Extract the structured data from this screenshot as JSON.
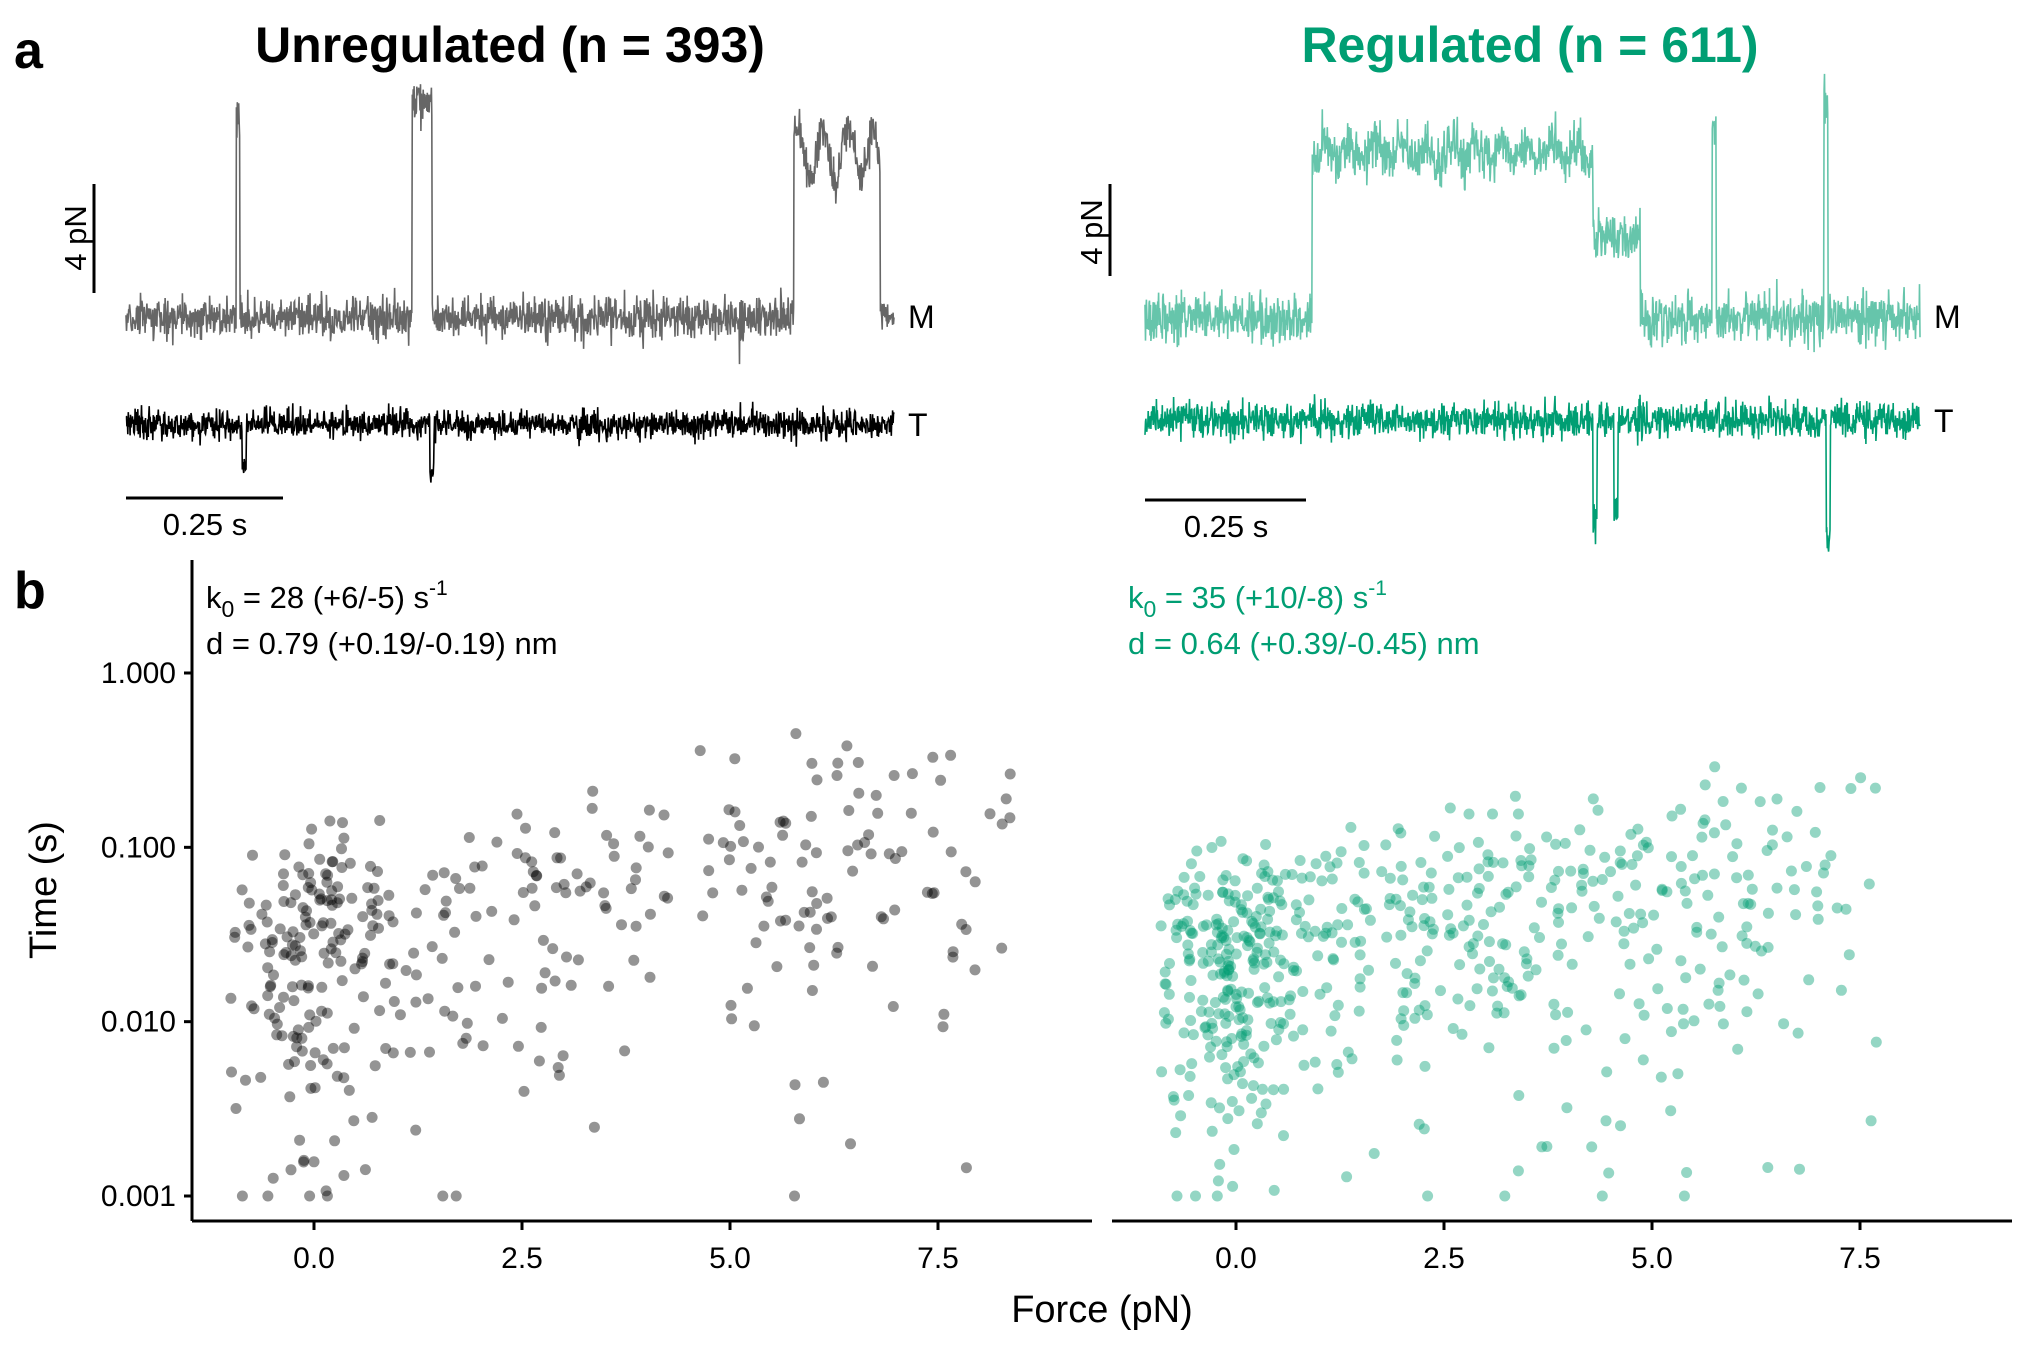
{
  "panel_labels": {
    "a": "a",
    "b": "b"
  },
  "colors": {
    "unregulated": "#000000",
    "unregulated_m": "#666666",
    "regulated": "#009E73",
    "regulated_m": "#66C5AB"
  },
  "panel_a": {
    "left": {
      "title": "Unregulated (n = 393)",
      "m_label": "M",
      "t_label": "T",
      "scalebar_force": "4 pN",
      "scalebar_time": "0.25 s"
    },
    "right": {
      "title": "Regulated (n = 611)",
      "m_label": "M",
      "t_label": "T",
      "scalebar_force": "4 pN",
      "scalebar_time": "0.25 s"
    }
  },
  "chart_data": {
    "type": "scatter",
    "xlabel": "Force (pN)",
    "ylabel": "Time (s)",
    "y_scale": "log",
    "ylim": [
      0.001,
      4
    ],
    "xlim": [
      -1.5,
      9.5
    ],
    "x_ticks": [
      "0.0",
      "2.5",
      "5.0",
      "7.5"
    ],
    "y_ticks": [
      "0.001",
      "0.010",
      "0.100",
      "1.000"
    ],
    "panels": [
      {
        "name": "Unregulated",
        "annotation_k0_main": "k",
        "annotation_k0_sub": "0",
        "annotation_k0_rest": " = 28 (+6/-5)  s",
        "annotation_k0_sup": "-1",
        "annotation_d": "d = 0.79 (+0.19/-0.19)  nm",
        "color": "#000000",
        "k0": 28,
        "d": 0.79,
        "n": 393
      },
      {
        "name": "Regulated",
        "annotation_k0_main": "k",
        "annotation_k0_sub": "0",
        "annotation_k0_rest": " = 35 (+10/-8)  s",
        "annotation_k0_sup": "-1",
        "annotation_d": "d = 0.64 (+0.39/-0.45)  nm",
        "color": "#009E73",
        "k0": 35,
        "d": 0.64,
        "n": 611
      }
    ]
  }
}
